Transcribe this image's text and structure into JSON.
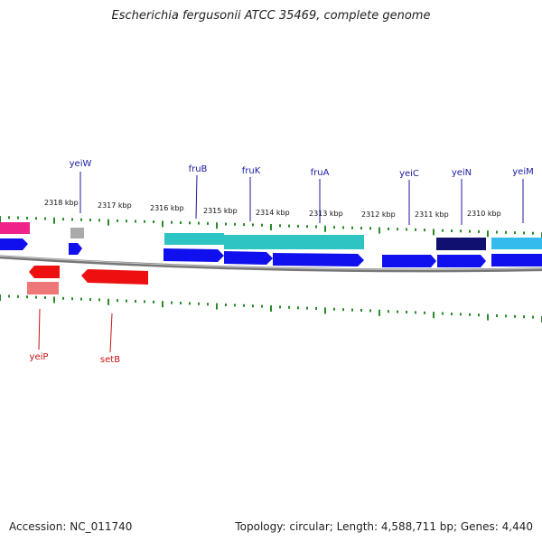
{
  "title": "Escherichia fergusonii ATCC 35469, complete genome",
  "footer": {
    "accession": "Accession: NC_011740",
    "summary": "Topology: circular; Length: 4,588,711 bp; Genes: 4,440"
  },
  "colors": {
    "forward_gene": "#1010ee",
    "reverse_gene": "#ee1010",
    "forward_label": "#1a1aa0",
    "reverse_label": "#cc1111",
    "tick": "#2a8a2a",
    "backbone": "#777777",
    "cyan_track": "#2ec4c4",
    "sky_track": "#33bbee",
    "navy_track": "#101070",
    "magenta_track": "#ee2288",
    "grey_track": "#aaaaaa",
    "pink_track": "#ee7777"
  },
  "scale_labels": [
    "2318 kbp",
    "2317 kbp",
    "2316 kbp",
    "2315 kbp",
    "2314 kbp",
    "2313 kbp",
    "2312 kbp",
    "2311 kbp",
    "2310 kbp"
  ],
  "forward_genes": [
    "yeiW",
    "fruB",
    "fruK",
    "fruA",
    "yeiC",
    "yeiN",
    "yeiM"
  ],
  "reverse_genes": [
    "yeiP",
    "setB"
  ]
}
